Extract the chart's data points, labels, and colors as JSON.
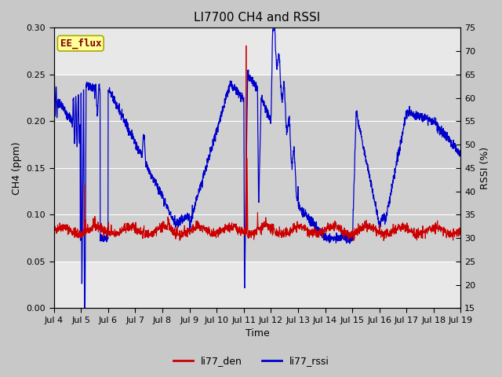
{
  "title": "LI7700 CH4 and RSSI",
  "xlabel": "Time",
  "ylabel_left": "CH4 (ppm)",
  "ylabel_right": "RSSI (%)",
  "ylim_left": [
    0.0,
    0.3
  ],
  "ylim_right": [
    15,
    75
  ],
  "yticks_left": [
    0.0,
    0.05,
    0.1,
    0.15,
    0.2,
    0.25,
    0.3
  ],
  "yticks_right": [
    15,
    20,
    25,
    30,
    35,
    40,
    45,
    50,
    55,
    60,
    65,
    70,
    75
  ],
  "xtick_labels": [
    "Jul 4",
    "Jul 5",
    "Jul 6",
    "Jul 7",
    "Jul 8",
    "Jul 9",
    "Jul 10",
    "Jul 11",
    "Jul 12",
    "Jul 13",
    "Jul 14",
    "Jul 15",
    "Jul 16",
    "Jul 17",
    "Jul 18",
    "Jul 19"
  ],
  "color_ch4": "#cc0000",
  "color_rssi": "#0000cc",
  "label_ch4": "li77_den",
  "label_rssi": "li77_rssi",
  "annotation_text": "EE_flux",
  "annotation_color": "#800000",
  "annotation_bg": "#ffff99",
  "annotation_border": "#aaaa00",
  "fig_bg": "#c8c8c8",
  "plot_bg": "#e8e8e8",
  "band_color": "#d0d0d0",
  "grid_color": "#ffffff",
  "title_fontsize": 11,
  "axis_label_fontsize": 9,
  "tick_fontsize": 8,
  "legend_fontsize": 9
}
